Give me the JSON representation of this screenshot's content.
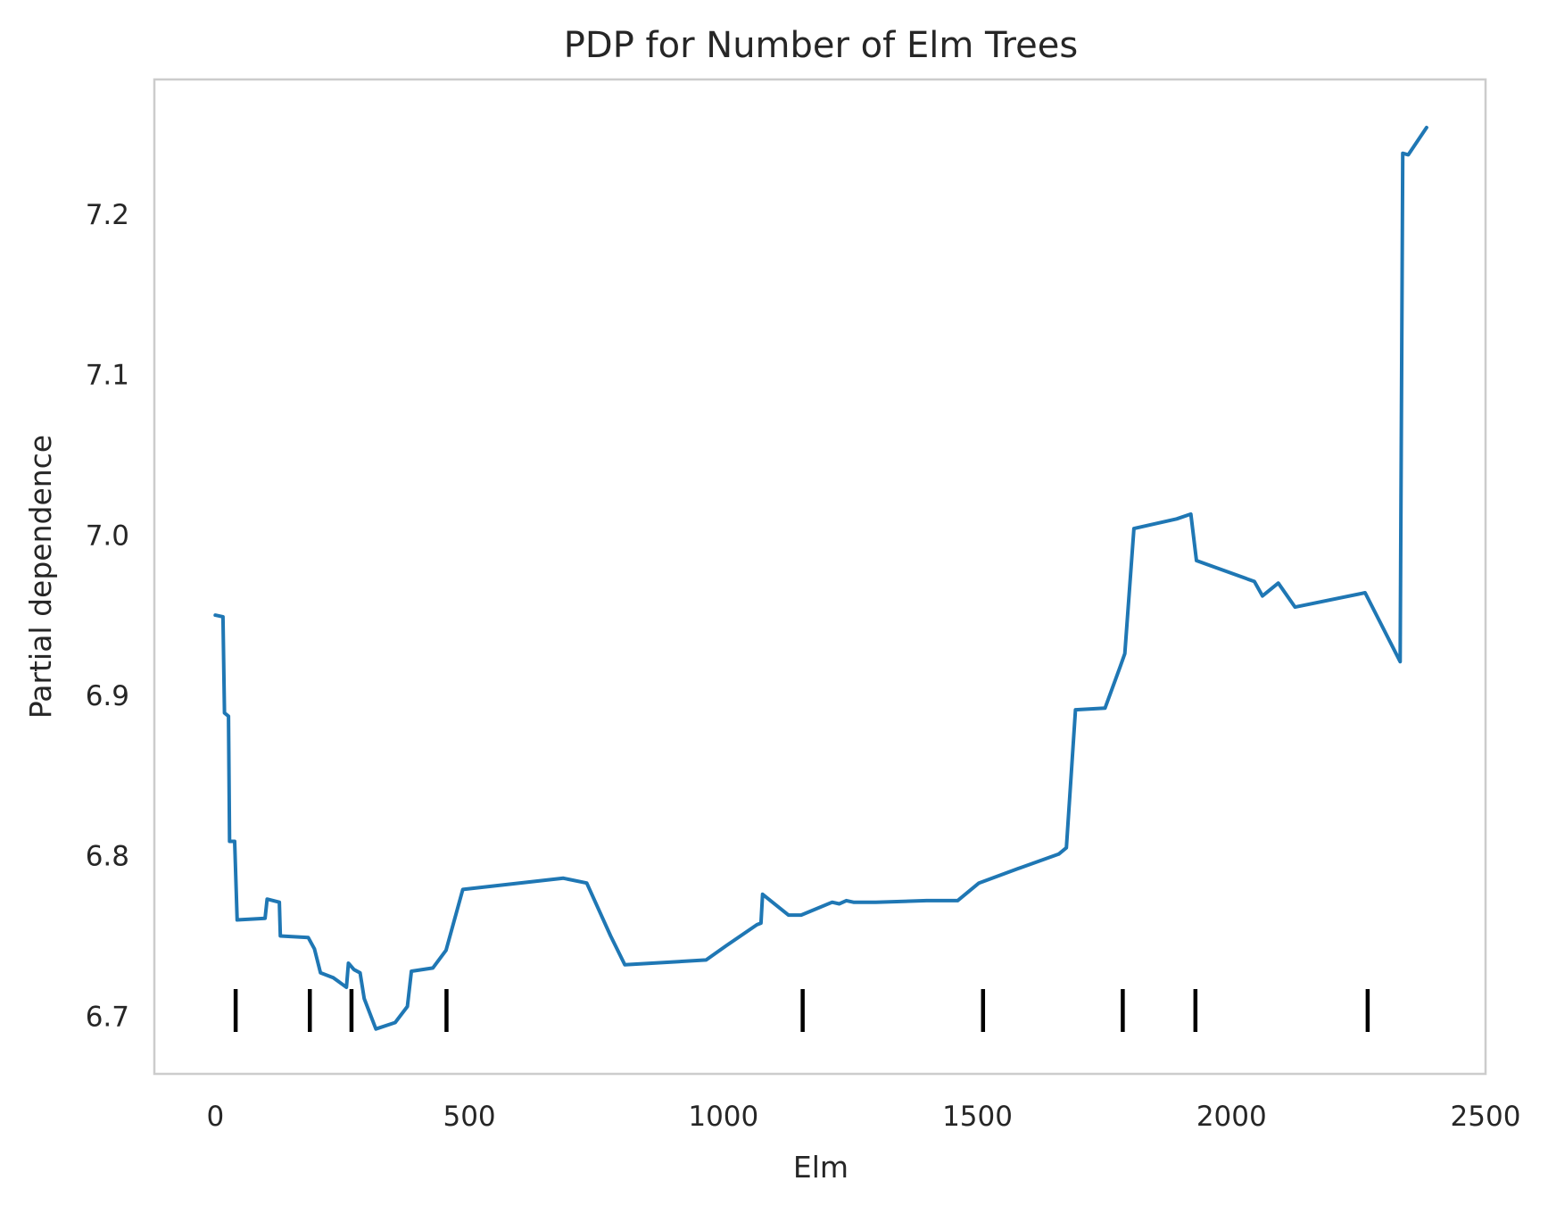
{
  "chart_data": {
    "type": "line",
    "title": "PDP for Number of Elm Trees",
    "xlabel": "Elm",
    "ylabel": "Partial dependence",
    "xlim": [
      -120,
      2500
    ],
    "ylim": [
      6.664,
      7.284
    ],
    "x_ticks": [
      0,
      500,
      1000,
      1500,
      2000,
      2500
    ],
    "y_ticks": [
      6.7,
      6.8,
      6.9,
      7.0,
      7.1,
      7.2
    ],
    "grid": false,
    "legend": "none",
    "series": [
      {
        "color": "#1f77b4",
        "points": [
          [
            0,
            6.95
          ],
          [
            15,
            6.949
          ],
          [
            18,
            6.889
          ],
          [
            26,
            6.887
          ],
          [
            28,
            6.809
          ],
          [
            38,
            6.809
          ],
          [
            43,
            6.76
          ],
          [
            98,
            6.761
          ],
          [
            102,
            6.773
          ],
          [
            126,
            6.771
          ],
          [
            128,
            6.75
          ],
          [
            183,
            6.749
          ],
          [
            195,
            6.742
          ],
          [
            207,
            6.727
          ],
          [
            232,
            6.724
          ],
          [
            258,
            6.718
          ],
          [
            262,
            6.733
          ],
          [
            273,
            6.729
          ],
          [
            285,
            6.727
          ],
          [
            293,
            6.711
          ],
          [
            316,
            6.692
          ],
          [
            354,
            6.696
          ],
          [
            378,
            6.706
          ],
          [
            386,
            6.728
          ],
          [
            428,
            6.73
          ],
          [
            454,
            6.741
          ],
          [
            487,
            6.779
          ],
          [
            685,
            6.786
          ],
          [
            731,
            6.783
          ],
          [
            778,
            6.75
          ],
          [
            806,
            6.732
          ],
          [
            966,
            6.735
          ],
          [
            1006,
            6.744
          ],
          [
            1066,
            6.757
          ],
          [
            1074,
            6.758
          ],
          [
            1077,
            6.776
          ],
          [
            1128,
            6.763
          ],
          [
            1153,
            6.763
          ],
          [
            1214,
            6.771
          ],
          [
            1228,
            6.77
          ],
          [
            1242,
            6.772
          ],
          [
            1256,
            6.771
          ],
          [
            1300,
            6.771
          ],
          [
            1400,
            6.772
          ],
          [
            1461,
            6.772
          ],
          [
            1503,
            6.783
          ],
          [
            1580,
            6.792
          ],
          [
            1660,
            6.801
          ],
          [
            1675,
            6.805
          ],
          [
            1693,
            6.891
          ],
          [
            1751,
            6.892
          ],
          [
            1781,
            6.918
          ],
          [
            1790,
            6.926
          ],
          [
            1808,
            7.004
          ],
          [
            1892,
            7.01
          ],
          [
            1920,
            7.013
          ],
          [
            1931,
            6.984
          ],
          [
            2045,
            6.971
          ],
          [
            2061,
            6.962
          ],
          [
            2092,
            6.97
          ],
          [
            2125,
            6.955
          ],
          [
            2263,
            6.964
          ],
          [
            2332,
            6.921
          ],
          [
            2337,
            7.238
          ],
          [
            2348,
            7.237
          ],
          [
            2384,
            7.254
          ]
        ]
      }
    ],
    "rug_ticks": [
      40,
      186,
      268,
      455,
      1156,
      1511,
      1786,
      1929,
      2268
    ]
  }
}
